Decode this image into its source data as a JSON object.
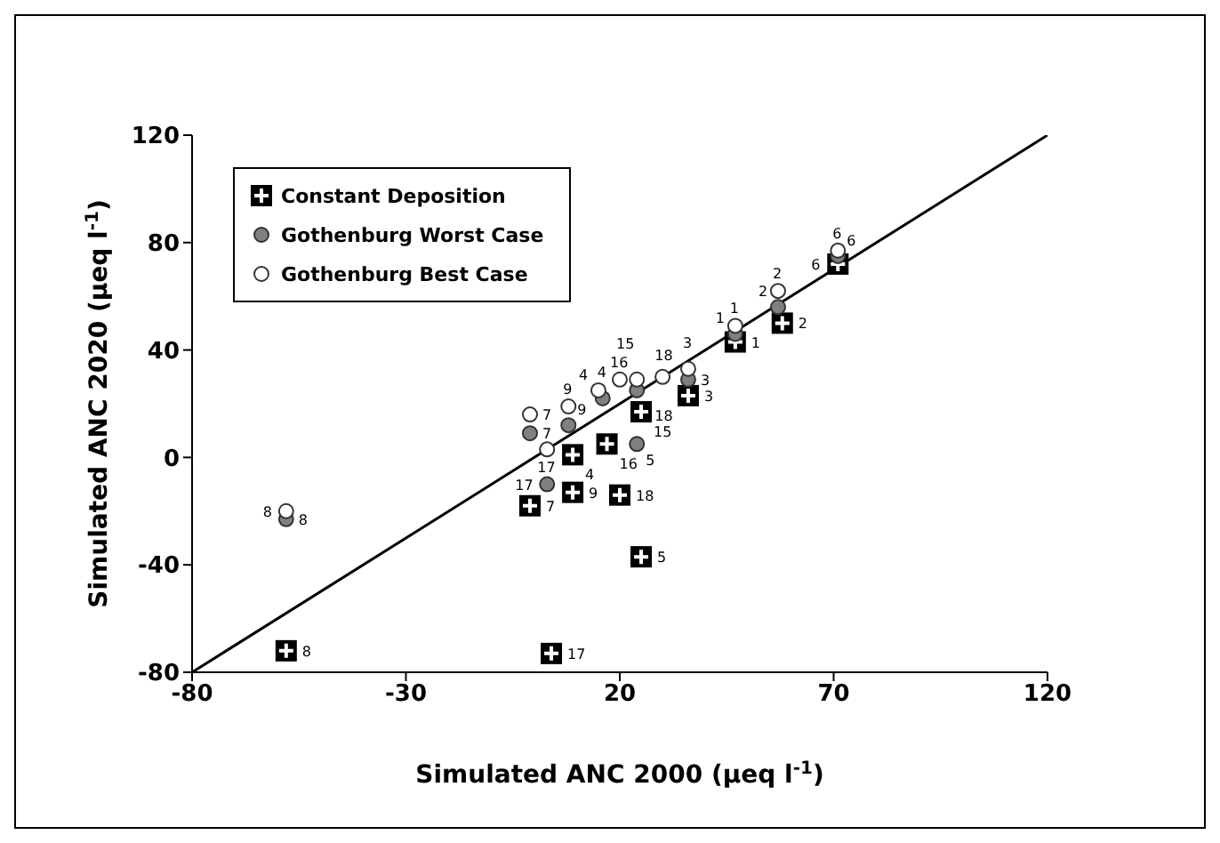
{
  "chart_data": {
    "type": "scatter",
    "xlabel": "Simulated ANC 2000 (μeq l$^{-1}$)",
    "ylabel": "Simulated ANC 2020 (μeq l$^{-1}$)",
    "xlim": [
      -80,
      120
    ],
    "xticks": [
      -80,
      -30,
      20,
      70,
      120
    ],
    "ylim": [
      -80,
      120
    ],
    "yticks": [
      -80,
      -40,
      0,
      40,
      80,
      120
    ],
    "legend": "top left",
    "series": [
      {
        "type": "line",
        "color": "#000000",
        "marker": "none",
        "line_style": "solid",
        "x": [
          -80,
          120
        ],
        "values": [
          -80,
          120
        ]
      },
      {
        "name": "Constant Deposition",
        "color": "#000000",
        "marker": "square",
        "x": [
          -58,
          4,
          -1,
          9,
          20,
          25,
          9,
          17,
          25,
          36,
          47,
          58,
          71
        ],
        "values": [
          -72,
          -73,
          -18,
          -13,
          -14,
          -37,
          1,
          5,
          17,
          23,
          43,
          50,
          72
        ]
      },
      {
        "name": "Gothenburg Worst Case",
        "color": "#808080",
        "marker": "circle",
        "x": [
          -58,
          3,
          -1,
          8,
          16,
          24,
          24,
          36,
          47,
          57,
          71
        ],
        "values": [
          -23,
          -10,
          9,
          12,
          22,
          5,
          25,
          29,
          46,
          56,
          75
        ]
      },
      {
        "name": "Gothenburg Best Case",
        "color": "#ffffff",
        "marker": "circle",
        "x": [
          -58,
          -1,
          3,
          8,
          15,
          20,
          24,
          30,
          36,
          47,
          57,
          71
        ],
        "values": [
          -20,
          16,
          3,
          19,
          25,
          29,
          29,
          30,
          33,
          49,
          62,
          77
        ]
      }
    ],
    "annotations": [
      {
        "text": "8",
        "x": -58,
        "y": -72
      },
      {
        "text": "17",
        "x": 4,
        "y": -73
      },
      {
        "text": "7",
        "x": -1,
        "y": -18
      },
      {
        "text": "9",
        "x": 9,
        "y": -13
      },
      {
        "text": "18",
        "x": 20,
        "y": -14
      },
      {
        "text": "5",
        "x": 25,
        "y": -37
      },
      {
        "text": "4",
        "x": 9,
        "y": 1
      },
      {
        "text": "16",
        "x": 17,
        "y": 5
      },
      {
        "text": "15",
        "x": 25,
        "y": 17
      },
      {
        "text": "3",
        "x": 36,
        "y": 23
      },
      {
        "text": "1",
        "x": 47,
        "y": 43
      },
      {
        "text": "2",
        "x": 58,
        "y": 50
      },
      {
        "text": "6",
        "x": 71,
        "y": 72
      },
      {
        "text": "8",
        "x": -58,
        "y": -23
      },
      {
        "text": "17",
        "x": 3,
        "y": -10
      },
      {
        "text": "7",
        "x": -1,
        "y": 9
      },
      {
        "text": "9",
        "x": 8,
        "y": 12
      },
      {
        "text": "4",
        "x": 16,
        "y": 22
      },
      {
        "text": "5",
        "x": 24,
        "y": 5
      },
      {
        "text": "18",
        "x": 24,
        "y": 25
      },
      {
        "text": "3",
        "x": 36,
        "y": 29
      },
      {
        "text": "1",
        "x": 47,
        "y": 46
      },
      {
        "text": "2",
        "x": 57,
        "y": 56
      },
      {
        "text": "6",
        "x": 71,
        "y": 75
      },
      {
        "text": "8",
        "x": -58,
        "y": -20
      },
      {
        "text": "7",
        "x": -1,
        "y": 16
      },
      {
        "text": "17",
        "x": 3,
        "y": 3
      },
      {
        "text": "9",
        "x": 8,
        "y": 19
      },
      {
        "text": "4",
        "x": 15,
        "y": 25
      },
      {
        "text": "16",
        "x": 20,
        "y": 29
      },
      {
        "text": "18",
        "x": 24,
        "y": 29
      },
      {
        "text": "15",
        "x": 30,
        "y": 30
      },
      {
        "text": "3",
        "x": 36,
        "y": 33
      },
      {
        "text": "1",
        "x": 47,
        "y": 49
      },
      {
        "text": "2",
        "x": 57,
        "y": 62
      },
      {
        "text": "6",
        "x": 71,
        "y": 77
      }
    ]
  }
}
